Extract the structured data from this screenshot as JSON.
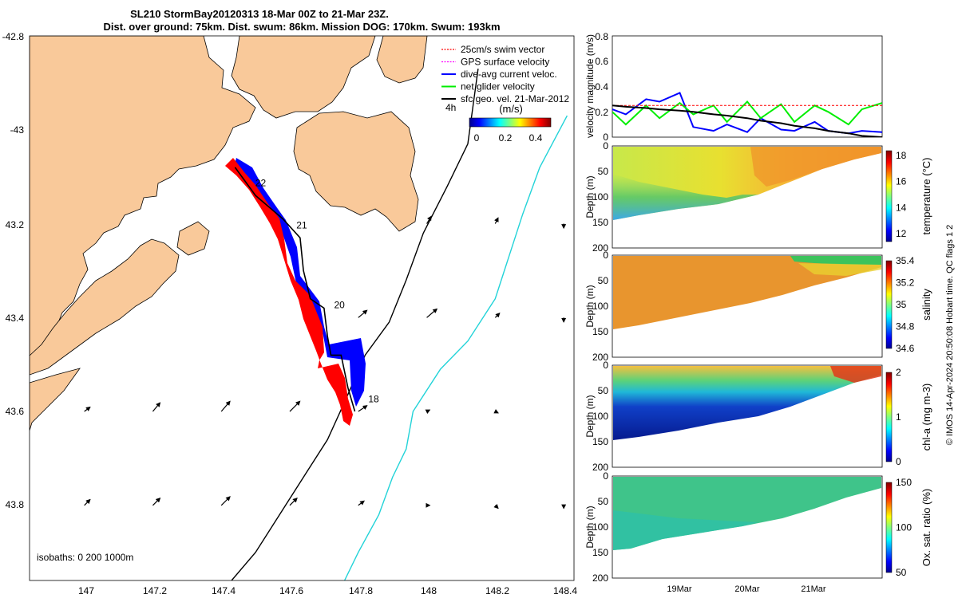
{
  "colors": {
    "land": "#F9C99A",
    "swim_vector": "#FF0000",
    "gps_surface": "#FF00FF",
    "dive_avg": "#0000FF",
    "net_glider": "#00EE00",
    "sfc_geo": "#000000",
    "isobath_200": "#000000",
    "isobath_1000": "#22D3D8"
  },
  "map": {
    "title_line1": "SL210 StormBay20120313 18-Mar 00Z to 21-Mar 23Z.",
    "title_line2": "Dist. over ground: 75km. Dist. swum: 86km. Mission DOG: 170km. Swum: 193km",
    "lat_ticks": [
      "-42.8",
      "-43",
      "43.2",
      "43.4",
      "43.6",
      "43.8"
    ],
    "lon_ticks": [
      "147",
      "147.2",
      "147.4",
      "147.6",
      "147.8",
      "148",
      "148.2",
      "148.4"
    ],
    "lon_range": [
      146.84,
      148.43
    ],
    "lat_range": [
      -42.8,
      -43.96
    ],
    "legend": [
      {
        "label": "25cm/s swim vector",
        "color": "#FF0000",
        "style": "dashed"
      },
      {
        "label": "GPS surface velocity",
        "color": "#FF00FF",
        "style": "dashed"
      },
      {
        "label": "dive-avg current veloc.",
        "color": "#0000FF",
        "style": "solid"
      },
      {
        "label": "net glider velocity",
        "color": "#00EE00",
        "style": "solid"
      },
      {
        "label": "sfc geo. vel. 21-Mar-2012",
        "color": "#000000",
        "style": "solid"
      }
    ],
    "legend_4h": "4h",
    "colorbar_title": "(m/s)",
    "colorbar_ticks": [
      "0",
      "0.2",
      "0.4"
    ],
    "day_labels": [
      {
        "text": "22",
        "lon": 147.49,
        "lat": -43.12
      },
      {
        "text": "21",
        "lon": 147.61,
        "lat": -43.21
      },
      {
        "text": "20",
        "lon": 147.72,
        "lat": -43.38
      },
      {
        "text": "18",
        "lon": 147.82,
        "lat": -43.58
      }
    ],
    "isobaths_text": "isobaths: 0   200  1000m",
    "track": [
      [
        147.44,
        -43.08
      ],
      [
        147.5,
        -43.14
      ],
      [
        147.58,
        -43.19
      ],
      [
        147.63,
        -43.23
      ],
      [
        147.64,
        -43.3
      ],
      [
        147.66,
        -43.36
      ],
      [
        147.7,
        -43.38
      ],
      [
        147.71,
        -43.44
      ],
      [
        147.72,
        -43.48
      ],
      [
        147.75,
        -43.48
      ],
      [
        147.77,
        -43.55
      ],
      [
        147.79,
        -43.6
      ]
    ],
    "isobath_200m": [
      [
        148.15,
        -42.87
      ],
      [
        148.12,
        -43.03
      ],
      [
        148.06,
        -43.12
      ],
      [
        147.99,
        -43.22
      ],
      [
        147.94,
        -43.32
      ],
      [
        147.89,
        -43.41
      ],
      [
        147.82,
        -43.48
      ],
      [
        147.76,
        -43.58
      ],
      [
        147.71,
        -43.66
      ],
      [
        147.64,
        -43.74
      ],
      [
        147.57,
        -43.82
      ],
      [
        147.5,
        -43.9
      ],
      [
        147.43,
        -43.96
      ]
    ],
    "isobath_1000m": [
      [
        148.41,
        -42.97
      ],
      [
        148.33,
        -43.08
      ],
      [
        148.28,
        -43.18
      ],
      [
        148.24,
        -43.27
      ],
      [
        148.2,
        -43.36
      ],
      [
        148.12,
        -43.45
      ],
      [
        148.04,
        -43.51
      ],
      [
        147.96,
        -43.6
      ],
      [
        147.94,
        -43.68
      ],
      [
        147.9,
        -43.74
      ],
      [
        147.86,
        -43.82
      ],
      [
        147.8,
        -43.9
      ],
      [
        147.76,
        -43.96
      ]
    ],
    "geo_vectors": [
      {
        "lon": 148.0,
        "lat": -43.2,
        "u": 0.03,
        "v": 0.05
      },
      {
        "lon": 148.2,
        "lat": -43.2,
        "u": 0.02,
        "v": 0.04
      },
      {
        "lon": 148.4,
        "lat": -43.2,
        "u": 0.0,
        "v": -0.03
      },
      {
        "lon": 147.8,
        "lat": -43.4,
        "u": 0.06,
        "v": 0.05
      },
      {
        "lon": 148.0,
        "lat": -43.4,
        "u": 0.07,
        "v": 0.06
      },
      {
        "lon": 148.2,
        "lat": -43.4,
        "u": 0.03,
        "v": 0.03
      },
      {
        "lon": 148.4,
        "lat": -43.4,
        "u": 0.0,
        "v": -0.03
      },
      {
        "lon": 147.0,
        "lat": -43.6,
        "u": 0.04,
        "v": 0.03
      },
      {
        "lon": 147.2,
        "lat": -43.6,
        "u": 0.05,
        "v": 0.06
      },
      {
        "lon": 147.4,
        "lat": -43.6,
        "u": 0.06,
        "v": 0.07
      },
      {
        "lon": 147.6,
        "lat": -43.6,
        "u": 0.07,
        "v": 0.07
      },
      {
        "lon": 147.8,
        "lat": -43.6,
        "u": 0.06,
        "v": 0.04
      },
      {
        "lon": 148.0,
        "lat": -43.6,
        "u": 0.02,
        "v": 0.01
      },
      {
        "lon": 148.2,
        "lat": -43.6,
        "u": 0.02,
        "v": -0.01
      },
      {
        "lon": 147.0,
        "lat": -43.8,
        "u": 0.04,
        "v": 0.04
      },
      {
        "lon": 147.2,
        "lat": -43.8,
        "u": 0.05,
        "v": 0.05
      },
      {
        "lon": 147.4,
        "lat": -43.8,
        "u": 0.06,
        "v": 0.06
      },
      {
        "lon": 147.6,
        "lat": -43.8,
        "u": 0.05,
        "v": 0.05
      },
      {
        "lon": 147.8,
        "lat": -43.8,
        "u": 0.04,
        "v": 0.03
      },
      {
        "lon": 148.0,
        "lat": -43.8,
        "u": 0.02,
        "v": 0.0
      },
      {
        "lon": 148.2,
        "lat": -43.8,
        "u": 0.02,
        "v": -0.02
      },
      {
        "lon": 148.4,
        "lat": -43.8,
        "u": 0.0,
        "v": -0.02
      }
    ]
  },
  "chart_data": [
    {
      "type": "line",
      "title": "",
      "ylabel": "velocity magnitude (m/s)",
      "ylim": [
        0,
        0.8
      ],
      "yticks": [
        "0",
        "0.2",
        "0.4",
        "0.6",
        "0.8"
      ],
      "x": [
        18.0,
        18.2,
        18.5,
        18.7,
        19.0,
        19.2,
        19.5,
        19.7,
        20.0,
        20.2,
        20.5,
        20.7,
        21.0,
        21.2,
        21.5,
        21.7,
        22.0
      ],
      "series": [
        {
          "name": "dive-avg current",
          "color": "#0000FF",
          "values": [
            0.22,
            0.18,
            0.3,
            0.28,
            0.35,
            0.08,
            0.05,
            0.1,
            0.04,
            0.15,
            0.06,
            0.05,
            0.12,
            0.05,
            0.03,
            0.05,
            0.04
          ]
        },
        {
          "name": "net glider velocity",
          "color": "#00EE00",
          "values": [
            0.2,
            0.1,
            0.25,
            0.15,
            0.27,
            0.18,
            0.25,
            0.12,
            0.28,
            0.15,
            0.26,
            0.12,
            0.25,
            0.2,
            0.1,
            0.22,
            0.27
          ]
        },
        {
          "name": "swim",
          "color": "#FF0000",
          "values": [
            0.25,
            0.25,
            0.25,
            0.25,
            0.25,
            0.25,
            0.25,
            0.25,
            0.25,
            0.25,
            0.25,
            0.25,
            0.25,
            0.25,
            0.25,
            0.25,
            0.25
          ]
        },
        {
          "name": "sfc geo",
          "color": "#000000",
          "values": [
            0.25,
            0.24,
            0.23,
            0.22,
            0.21,
            0.2,
            0.18,
            0.17,
            0.15,
            0.13,
            0.11,
            0.09,
            0.07,
            0.05,
            0.03,
            0.01,
            0.0
          ]
        }
      ]
    },
    {
      "type": "heatmap",
      "ylabel": "Depth (m)",
      "colorbar_label": "temperature (°C)",
      "colorbar_ticks": [
        "12",
        "14",
        "16",
        "18"
      ],
      "ylim": [
        0,
        200
      ],
      "yticks": [
        "0",
        "50",
        "100",
        "150",
        "200"
      ]
    },
    {
      "type": "heatmap",
      "ylabel": "Depth (m)",
      "colorbar_label": "salinity",
      "colorbar_ticks": [
        "34.6",
        "34.8",
        "35",
        "35.2",
        "35.4"
      ],
      "ylim": [
        0,
        200
      ],
      "yticks": [
        "0",
        "50",
        "100",
        "150",
        "200"
      ]
    },
    {
      "type": "heatmap",
      "ylabel": "Depth (m)",
      "colorbar_label": "chl-a (mg m-3)",
      "colorbar_ticks": [
        "0",
        "1",
        "2"
      ],
      "ylim": [
        0,
        200
      ],
      "yticks": [
        "0",
        "50",
        "100",
        "150",
        "200"
      ]
    },
    {
      "type": "heatmap",
      "ylabel": "Depth (m)",
      "colorbar_label": "Ox. sat. ratio (%)",
      "colorbar_ticks": [
        "50",
        "100",
        "150"
      ],
      "ylim": [
        0,
        200
      ],
      "yticks": [
        "0",
        "50",
        "100",
        "150",
        "200"
      ],
      "x_ticks": [
        "19Mar",
        "20Mar",
        "21Mar"
      ]
    }
  ],
  "side_text": "© IMOS 14-Apr-2024 20:50:08 Hobart time. QC flags 1  2"
}
